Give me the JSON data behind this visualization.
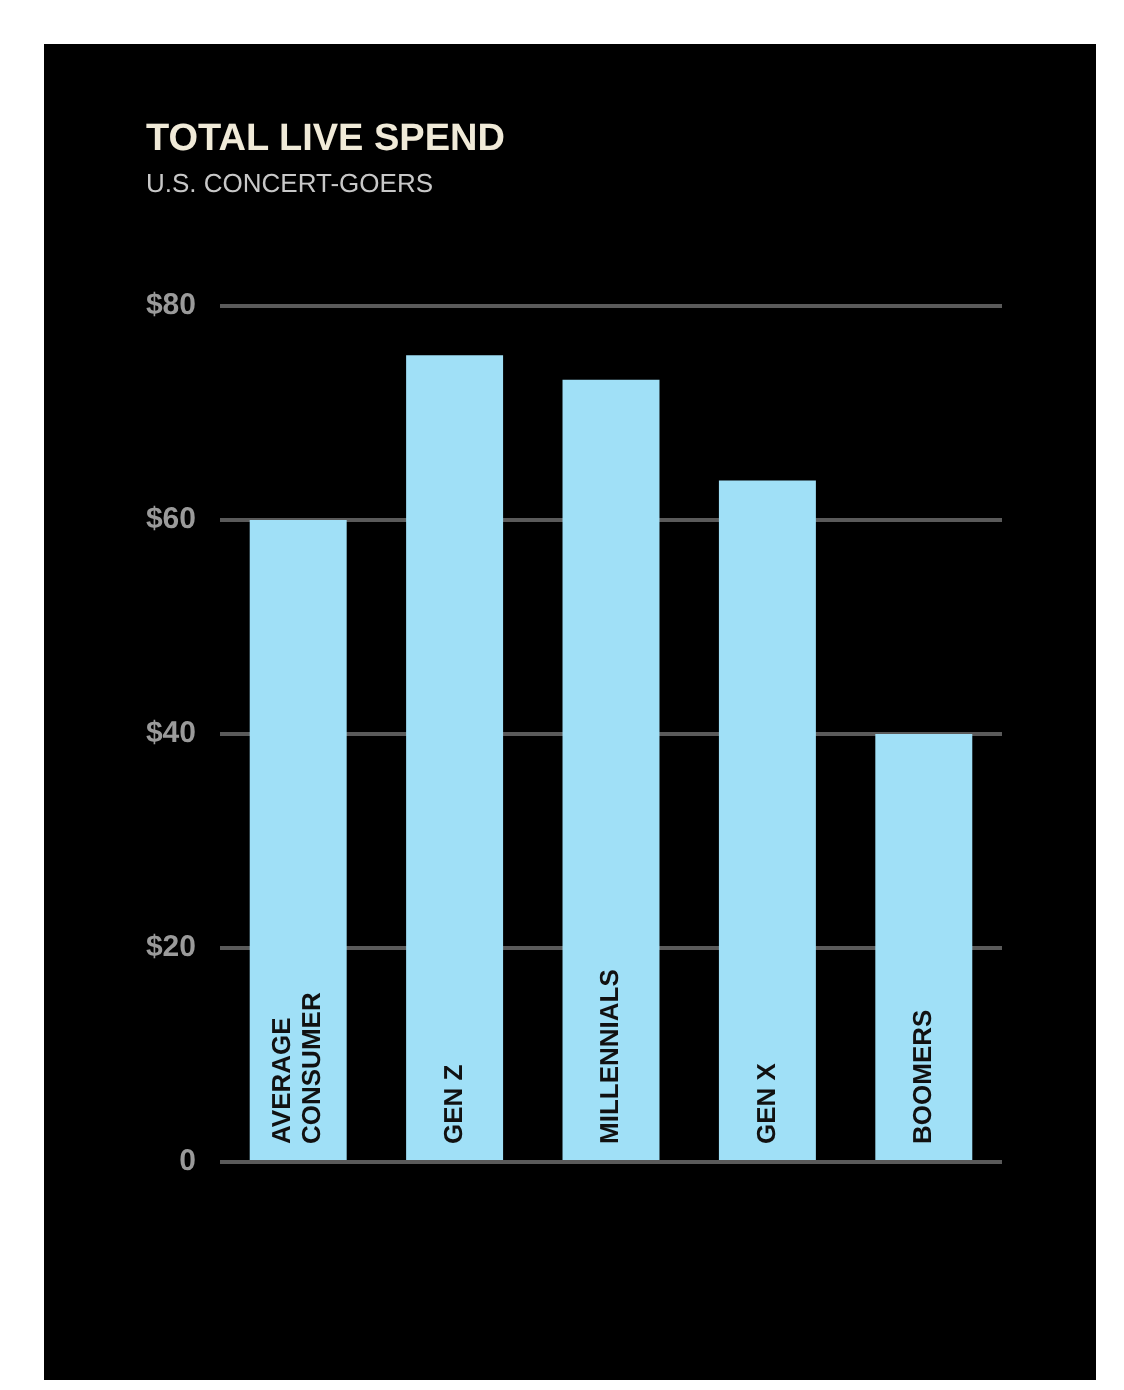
{
  "chart_data": {
    "type": "bar",
    "title": "TOTAL LIVE SPEND",
    "subtitle": "U.S. CONCERT-GOERS",
    "categories": [
      "AVERAGE CONSUMER",
      "GEN Z",
      "MILLENNIALS",
      "GEN X",
      "BOOMERS"
    ],
    "values": [
      60,
      75.4,
      73.1,
      63.7,
      40
    ],
    "color": "#a0e0f7",
    "ylim": [
      0,
      80
    ],
    "yticks": [
      {
        "value": 0,
        "label": "0"
      },
      {
        "value": 20,
        "label": "$20"
      },
      {
        "value": 40,
        "label": "$40"
      },
      {
        "value": 60,
        "label": "$60"
      },
      {
        "value": 80,
        "label": "$80"
      }
    ],
    "grid": "y"
  }
}
